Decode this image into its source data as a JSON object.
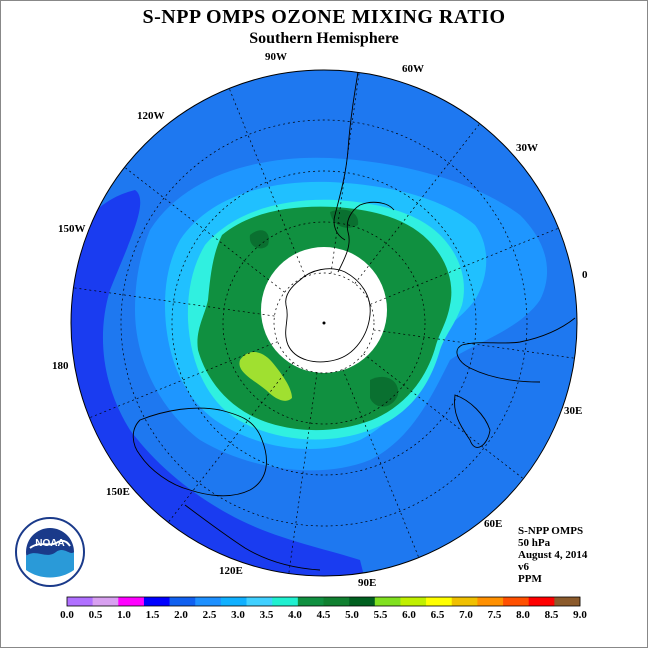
{
  "title": "S-NPP OMPS OZONE MIXING RATIO",
  "subtitle": "Southern Hemisphere",
  "longitude_labels": [
    "0",
    "30E",
    "60E",
    "90E",
    "120E",
    "150E",
    "180",
    "150W",
    "120W",
    "90W",
    "60W",
    "30W"
  ],
  "info": {
    "instrument": "S-NPP OMPS",
    "level": "50 hPa",
    "date": "August 4, 2014",
    "version": "v6",
    "units": "PPM"
  },
  "colorbar": {
    "ticks": [
      "0.0",
      "0.5",
      "1.0",
      "1.5",
      "2.0",
      "2.5",
      "3.0",
      "3.5",
      "4.0",
      "4.5",
      "5.0",
      "5.5",
      "6.0",
      "6.5",
      "7.0",
      "7.5",
      "8.0",
      "8.5",
      "9.0"
    ],
    "colors": [
      "#b070ff",
      "#d8a0f0",
      "#ff00ff",
      "#0000ff",
      "#1060f0",
      "#1e90ff",
      "#10b0ff",
      "#40d0ff",
      "#20f0d0",
      "#109040",
      "#108030",
      "#006020",
      "#80e020",
      "#c0f000",
      "#ffff00",
      "#f0c000",
      "#ff9000",
      "#ff5000",
      "#ff0000",
      "#8b5a2b"
    ]
  },
  "map_colors": {
    "deep_blue": "#1a3cf0",
    "blue": "#1e78f0",
    "mid_blue": "#1e96ff",
    "light_blue": "#20c0ff",
    "cyan": "#30f0e0",
    "green": "#109040",
    "dark_green": "#0a7030",
    "yellow_green": "#a0e030",
    "polar_hole": "#ffffff"
  },
  "logo_text": "NOAA"
}
